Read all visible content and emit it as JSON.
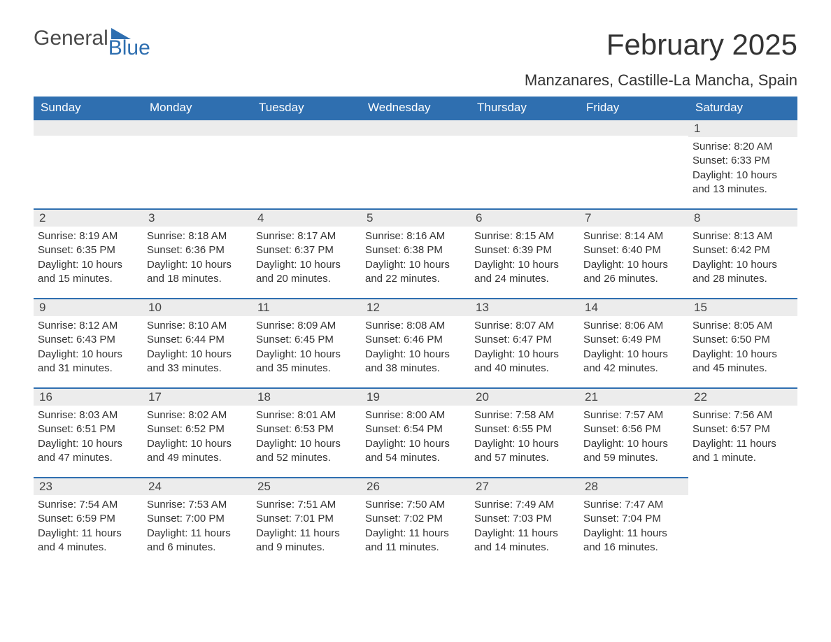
{
  "logo": {
    "word1": "General",
    "word2": "Blue"
  },
  "title": "February 2025",
  "location": "Manzanares, Castille-La Mancha, Spain",
  "colors": {
    "header_bg": "#2f6fb0",
    "header_text": "#ffffff",
    "daynum_bg": "#ececec",
    "border_top": "#2f6fb0",
    "body_text": "#333333",
    "logo_gray": "#4a4a4a",
    "logo_blue": "#2f6fb0",
    "page_bg": "#ffffff"
  },
  "weekdays": [
    "Sunday",
    "Monday",
    "Tuesday",
    "Wednesday",
    "Thursday",
    "Friday",
    "Saturday"
  ],
  "weeks": [
    [
      null,
      null,
      null,
      null,
      null,
      null,
      {
        "n": "1",
        "sunrise": "Sunrise: 8:20 AM",
        "sunset": "Sunset: 6:33 PM",
        "daylight": "Daylight: 10 hours and 13 minutes."
      }
    ],
    [
      {
        "n": "2",
        "sunrise": "Sunrise: 8:19 AM",
        "sunset": "Sunset: 6:35 PM",
        "daylight": "Daylight: 10 hours and 15 minutes."
      },
      {
        "n": "3",
        "sunrise": "Sunrise: 8:18 AM",
        "sunset": "Sunset: 6:36 PM",
        "daylight": "Daylight: 10 hours and 18 minutes."
      },
      {
        "n": "4",
        "sunrise": "Sunrise: 8:17 AM",
        "sunset": "Sunset: 6:37 PM",
        "daylight": "Daylight: 10 hours and 20 minutes."
      },
      {
        "n": "5",
        "sunrise": "Sunrise: 8:16 AM",
        "sunset": "Sunset: 6:38 PM",
        "daylight": "Daylight: 10 hours and 22 minutes."
      },
      {
        "n": "6",
        "sunrise": "Sunrise: 8:15 AM",
        "sunset": "Sunset: 6:39 PM",
        "daylight": "Daylight: 10 hours and 24 minutes."
      },
      {
        "n": "7",
        "sunrise": "Sunrise: 8:14 AM",
        "sunset": "Sunset: 6:40 PM",
        "daylight": "Daylight: 10 hours and 26 minutes."
      },
      {
        "n": "8",
        "sunrise": "Sunrise: 8:13 AM",
        "sunset": "Sunset: 6:42 PM",
        "daylight": "Daylight: 10 hours and 28 minutes."
      }
    ],
    [
      {
        "n": "9",
        "sunrise": "Sunrise: 8:12 AM",
        "sunset": "Sunset: 6:43 PM",
        "daylight": "Daylight: 10 hours and 31 minutes."
      },
      {
        "n": "10",
        "sunrise": "Sunrise: 8:10 AM",
        "sunset": "Sunset: 6:44 PM",
        "daylight": "Daylight: 10 hours and 33 minutes."
      },
      {
        "n": "11",
        "sunrise": "Sunrise: 8:09 AM",
        "sunset": "Sunset: 6:45 PM",
        "daylight": "Daylight: 10 hours and 35 minutes."
      },
      {
        "n": "12",
        "sunrise": "Sunrise: 8:08 AM",
        "sunset": "Sunset: 6:46 PM",
        "daylight": "Daylight: 10 hours and 38 minutes."
      },
      {
        "n": "13",
        "sunrise": "Sunrise: 8:07 AM",
        "sunset": "Sunset: 6:47 PM",
        "daylight": "Daylight: 10 hours and 40 minutes."
      },
      {
        "n": "14",
        "sunrise": "Sunrise: 8:06 AM",
        "sunset": "Sunset: 6:49 PM",
        "daylight": "Daylight: 10 hours and 42 minutes."
      },
      {
        "n": "15",
        "sunrise": "Sunrise: 8:05 AM",
        "sunset": "Sunset: 6:50 PM",
        "daylight": "Daylight: 10 hours and 45 minutes."
      }
    ],
    [
      {
        "n": "16",
        "sunrise": "Sunrise: 8:03 AM",
        "sunset": "Sunset: 6:51 PM",
        "daylight": "Daylight: 10 hours and 47 minutes."
      },
      {
        "n": "17",
        "sunrise": "Sunrise: 8:02 AM",
        "sunset": "Sunset: 6:52 PM",
        "daylight": "Daylight: 10 hours and 49 minutes."
      },
      {
        "n": "18",
        "sunrise": "Sunrise: 8:01 AM",
        "sunset": "Sunset: 6:53 PM",
        "daylight": "Daylight: 10 hours and 52 minutes."
      },
      {
        "n": "19",
        "sunrise": "Sunrise: 8:00 AM",
        "sunset": "Sunset: 6:54 PM",
        "daylight": "Daylight: 10 hours and 54 minutes."
      },
      {
        "n": "20",
        "sunrise": "Sunrise: 7:58 AM",
        "sunset": "Sunset: 6:55 PM",
        "daylight": "Daylight: 10 hours and 57 minutes."
      },
      {
        "n": "21",
        "sunrise": "Sunrise: 7:57 AM",
        "sunset": "Sunset: 6:56 PM",
        "daylight": "Daylight: 10 hours and 59 minutes."
      },
      {
        "n": "22",
        "sunrise": "Sunrise: 7:56 AM",
        "sunset": "Sunset: 6:57 PM",
        "daylight": "Daylight: 11 hours and 1 minute."
      }
    ],
    [
      {
        "n": "23",
        "sunrise": "Sunrise: 7:54 AM",
        "sunset": "Sunset: 6:59 PM",
        "daylight": "Daylight: 11 hours and 4 minutes."
      },
      {
        "n": "24",
        "sunrise": "Sunrise: 7:53 AM",
        "sunset": "Sunset: 7:00 PM",
        "daylight": "Daylight: 11 hours and 6 minutes."
      },
      {
        "n": "25",
        "sunrise": "Sunrise: 7:51 AM",
        "sunset": "Sunset: 7:01 PM",
        "daylight": "Daylight: 11 hours and 9 minutes."
      },
      {
        "n": "26",
        "sunrise": "Sunrise: 7:50 AM",
        "sunset": "Sunset: 7:02 PM",
        "daylight": "Daylight: 11 hours and 11 minutes."
      },
      {
        "n": "27",
        "sunrise": "Sunrise: 7:49 AM",
        "sunset": "Sunset: 7:03 PM",
        "daylight": "Daylight: 11 hours and 14 minutes."
      },
      {
        "n": "28",
        "sunrise": "Sunrise: 7:47 AM",
        "sunset": "Sunset: 7:04 PM",
        "daylight": "Daylight: 11 hours and 16 minutes."
      },
      null
    ]
  ]
}
